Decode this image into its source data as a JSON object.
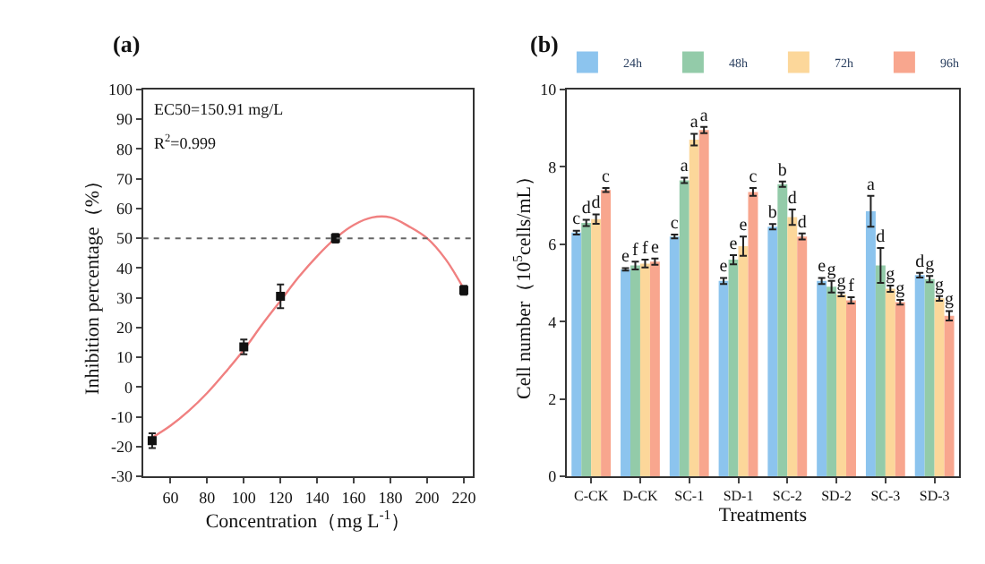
{
  "chart_data": [
    {
      "type": "scatter",
      "title": "(a)",
      "xlabel": "Concentration（mg L$^{-1}$）",
      "ylabel": "Inhibition percentage（%）",
      "xlim": [
        45,
        225
      ],
      "xticks": [
        60,
        80,
        100,
        120,
        140,
        160,
        180,
        200,
        220
      ],
      "ylim": [
        -30,
        100
      ],
      "yticks": [
        -30,
        -20,
        -10,
        0,
        10,
        20,
        30,
        40,
        50,
        60,
        70,
        80,
        90,
        100
      ],
      "legend": false,
      "series": [
        {
          "type": "line",
          "color": "#f08080",
          "marker": "none",
          "x": [
            50,
            60,
            70,
            80,
            90,
            100,
            110,
            120,
            130,
            140,
            150,
            160,
            170,
            180,
            190,
            200,
            210,
            220
          ],
          "values": [
            -17,
            -13,
            -8,
            -2,
            5,
            12.5,
            21,
            29,
            37,
            44,
            50,
            54.5,
            57,
            57,
            54,
            50,
            43,
            33
          ]
        },
        {
          "type": "scatter",
          "color": "#111111",
          "marker": "square",
          "x": [
            50,
            100,
            120,
            150,
            220
          ],
          "values": [
            -18,
            13.5,
            30.5,
            50,
            32.5
          ],
          "errors": [
            2.5,
            2.5,
            4,
            1.5,
            1.5
          ]
        }
      ],
      "ref_lines": [
        {
          "axis": "y",
          "value": 50,
          "color": "#666666",
          "line_style": "dotted"
        }
      ],
      "annotations": [
        "EC50=150.91 mg/L",
        "R$^{2}$=0.999"
      ]
    },
    {
      "type": "bar",
      "title": "(b)",
      "xlabel": "Treatments",
      "ylabel": "Cell number（10$^{5}$cells/mL）",
      "categories": [
        "C-CK",
        "D-CK",
        "SC-1",
        "SD-1",
        "SC-2",
        "SD-2",
        "SC-3",
        "SD-3"
      ],
      "ylim": [
        0,
        10
      ],
      "yticks": [
        0,
        2,
        4,
        6,
        8,
        10
      ],
      "legend": "top",
      "series": [
        {
          "name": "24h",
          "color": "#8cc4ee",
          "values": [
            6.3,
            5.35,
            6.2,
            5.05,
            6.45,
            5.05,
            6.85,
            5.2
          ],
          "errors": [
            0.05,
            0.03,
            0.05,
            0.08,
            0.07,
            0.08,
            0.4,
            0.06
          ],
          "value_labels": [
            "c",
            "e",
            "c",
            "e",
            "b",
            "e",
            "a",
            "d"
          ]
        },
        {
          "name": "48h",
          "color": "#93cba9",
          "values": [
            6.55,
            5.45,
            7.65,
            5.6,
            7.55,
            4.9,
            5.45,
            5.1
          ],
          "errors": [
            0.08,
            0.1,
            0.07,
            0.12,
            0.07,
            0.15,
            0.45,
            0.08
          ],
          "value_labels": [
            "d",
            "f",
            "a",
            "e",
            "b",
            "g",
            "d",
            "g"
          ]
        },
        {
          "name": "72h",
          "color": "#fcd79a",
          "values": [
            6.65,
            5.5,
            8.7,
            5.95,
            6.7,
            4.7,
            4.85,
            4.6
          ],
          "errors": [
            0.12,
            0.1,
            0.15,
            0.25,
            0.2,
            0.05,
            0.08,
            0.06
          ],
          "value_labels": [
            "d",
            "f",
            "a",
            "e",
            "d",
            "g",
            "g",
            "g"
          ]
        },
        {
          "name": "96h",
          "color": "#f8a68e",
          "values": [
            7.4,
            5.55,
            8.95,
            7.35,
            6.2,
            4.55,
            4.5,
            4.15
          ],
          "errors": [
            0.05,
            0.08,
            0.08,
            0.1,
            0.08,
            0.08,
            0.06,
            0.12
          ],
          "value_labels": [
            "c",
            "e",
            "a",
            "c",
            "d",
            "f",
            "g",
            "g"
          ]
        }
      ]
    }
  ]
}
